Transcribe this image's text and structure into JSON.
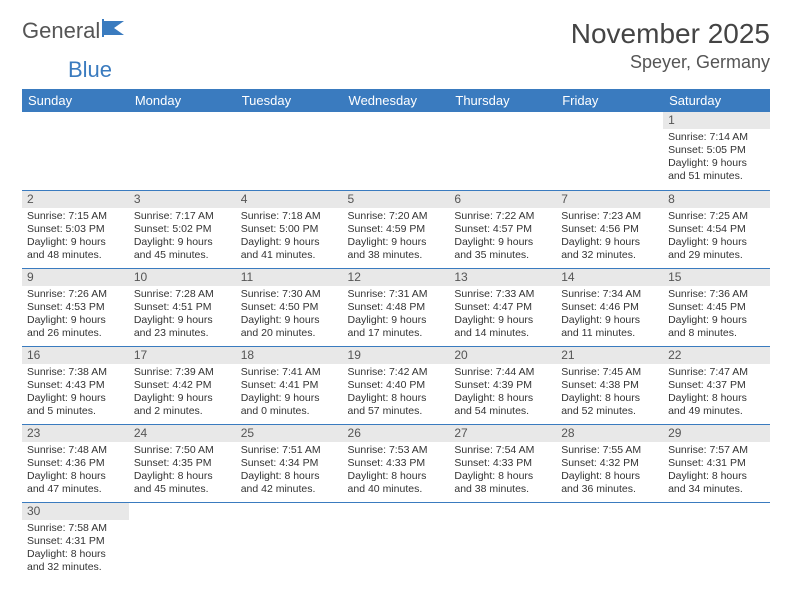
{
  "logo": {
    "text1": "General",
    "text2": "Blue"
  },
  "title": "November 2025",
  "location": "Speyer, Germany",
  "colors": {
    "header_bg": "#3a7bbf",
    "header_text": "#ffffff",
    "daynum_bg": "#e8e8e8",
    "row_border": "#3a7bbf",
    "body_text": "#333333",
    "title_text": "#444444"
  },
  "weekdays": [
    "Sunday",
    "Monday",
    "Tuesday",
    "Wednesday",
    "Thursday",
    "Friday",
    "Saturday"
  ],
  "weeks": [
    [
      null,
      null,
      null,
      null,
      null,
      null,
      {
        "n": "1",
        "sr": "7:14 AM",
        "ss": "5:05 PM",
        "dl": "9 hours and 51 minutes."
      }
    ],
    [
      {
        "n": "2",
        "sr": "7:15 AM",
        "ss": "5:03 PM",
        "dl": "9 hours and 48 minutes."
      },
      {
        "n": "3",
        "sr": "7:17 AM",
        "ss": "5:02 PM",
        "dl": "9 hours and 45 minutes."
      },
      {
        "n": "4",
        "sr": "7:18 AM",
        "ss": "5:00 PM",
        "dl": "9 hours and 41 minutes."
      },
      {
        "n": "5",
        "sr": "7:20 AM",
        "ss": "4:59 PM",
        "dl": "9 hours and 38 minutes."
      },
      {
        "n": "6",
        "sr": "7:22 AM",
        "ss": "4:57 PM",
        "dl": "9 hours and 35 minutes."
      },
      {
        "n": "7",
        "sr": "7:23 AM",
        "ss": "4:56 PM",
        "dl": "9 hours and 32 minutes."
      },
      {
        "n": "8",
        "sr": "7:25 AM",
        "ss": "4:54 PM",
        "dl": "9 hours and 29 minutes."
      }
    ],
    [
      {
        "n": "9",
        "sr": "7:26 AM",
        "ss": "4:53 PM",
        "dl": "9 hours and 26 minutes."
      },
      {
        "n": "10",
        "sr": "7:28 AM",
        "ss": "4:51 PM",
        "dl": "9 hours and 23 minutes."
      },
      {
        "n": "11",
        "sr": "7:30 AM",
        "ss": "4:50 PM",
        "dl": "9 hours and 20 minutes."
      },
      {
        "n": "12",
        "sr": "7:31 AM",
        "ss": "4:48 PM",
        "dl": "9 hours and 17 minutes."
      },
      {
        "n": "13",
        "sr": "7:33 AM",
        "ss": "4:47 PM",
        "dl": "9 hours and 14 minutes."
      },
      {
        "n": "14",
        "sr": "7:34 AM",
        "ss": "4:46 PM",
        "dl": "9 hours and 11 minutes."
      },
      {
        "n": "15",
        "sr": "7:36 AM",
        "ss": "4:45 PM",
        "dl": "9 hours and 8 minutes."
      }
    ],
    [
      {
        "n": "16",
        "sr": "7:38 AM",
        "ss": "4:43 PM",
        "dl": "9 hours and 5 minutes."
      },
      {
        "n": "17",
        "sr": "7:39 AM",
        "ss": "4:42 PM",
        "dl": "9 hours and 2 minutes."
      },
      {
        "n": "18",
        "sr": "7:41 AM",
        "ss": "4:41 PM",
        "dl": "9 hours and 0 minutes."
      },
      {
        "n": "19",
        "sr": "7:42 AM",
        "ss": "4:40 PM",
        "dl": "8 hours and 57 minutes."
      },
      {
        "n": "20",
        "sr": "7:44 AM",
        "ss": "4:39 PM",
        "dl": "8 hours and 54 minutes."
      },
      {
        "n": "21",
        "sr": "7:45 AM",
        "ss": "4:38 PM",
        "dl": "8 hours and 52 minutes."
      },
      {
        "n": "22",
        "sr": "7:47 AM",
        "ss": "4:37 PM",
        "dl": "8 hours and 49 minutes."
      }
    ],
    [
      {
        "n": "23",
        "sr": "7:48 AM",
        "ss": "4:36 PM",
        "dl": "8 hours and 47 minutes."
      },
      {
        "n": "24",
        "sr": "7:50 AM",
        "ss": "4:35 PM",
        "dl": "8 hours and 45 minutes."
      },
      {
        "n": "25",
        "sr": "7:51 AM",
        "ss": "4:34 PM",
        "dl": "8 hours and 42 minutes."
      },
      {
        "n": "26",
        "sr": "7:53 AM",
        "ss": "4:33 PM",
        "dl": "8 hours and 40 minutes."
      },
      {
        "n": "27",
        "sr": "7:54 AM",
        "ss": "4:33 PM",
        "dl": "8 hours and 38 minutes."
      },
      {
        "n": "28",
        "sr": "7:55 AM",
        "ss": "4:32 PM",
        "dl": "8 hours and 36 minutes."
      },
      {
        "n": "29",
        "sr": "7:57 AM",
        "ss": "4:31 PM",
        "dl": "8 hours and 34 minutes."
      }
    ],
    [
      {
        "n": "30",
        "sr": "7:58 AM",
        "ss": "4:31 PM",
        "dl": "8 hours and 32 minutes."
      },
      null,
      null,
      null,
      null,
      null,
      null
    ]
  ],
  "labels": {
    "sunrise": "Sunrise: ",
    "sunset": "Sunset: ",
    "daylight": "Daylight: "
  }
}
